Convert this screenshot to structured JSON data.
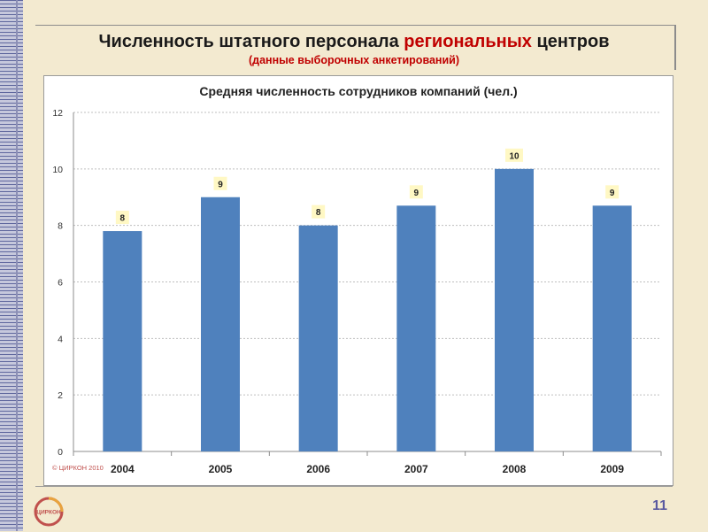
{
  "slide": {
    "title_part1": "Численность штатного персонала ",
    "title_accent": "региональных",
    "title_part2": " центров",
    "subtitle": "(данные выборочных анкетирований)",
    "page_number": "11",
    "logo_text": "ЦИРКОН"
  },
  "colors": {
    "bar": "#4f81bd",
    "data_label_bg": "#fff8c4",
    "title_accent": "#c00000",
    "copyright": "#c0504d"
  },
  "chart_data": {
    "type": "bar",
    "title": "Средняя численность сотрудников компаний (чел.)",
    "categories": [
      "2004",
      "2005",
      "2006",
      "2007",
      "2008",
      "2009"
    ],
    "values": [
      7.8,
      9.0,
      8.0,
      8.7,
      10.0,
      8.7
    ],
    "data_labels": [
      "8",
      "9",
      "8",
      "9",
      "10",
      "9"
    ],
    "yticks": [
      "0",
      "2",
      "4",
      "6",
      "8",
      "10",
      "12"
    ],
    "ylim": [
      0,
      12
    ],
    "grid": true,
    "legend": "none",
    "annotation": "© ЦИРКОН 2010"
  }
}
